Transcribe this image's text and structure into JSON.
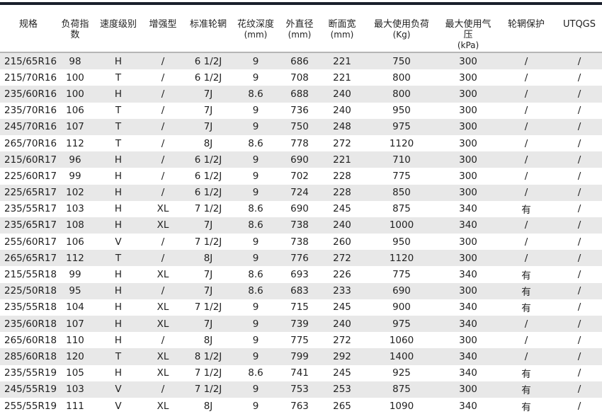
{
  "table": {
    "headers": [
      {
        "label": "规格",
        "unit": ""
      },
      {
        "label": "负荷指数",
        "unit": ""
      },
      {
        "label": "速度级别",
        "unit": ""
      },
      {
        "label": "增强型",
        "unit": ""
      },
      {
        "label": "标准轮辋",
        "unit": ""
      },
      {
        "label": "花纹深度",
        "unit": "(mm)"
      },
      {
        "label": "外直径",
        "unit": "(mm)"
      },
      {
        "label": "断面宽",
        "unit": "(mm)"
      },
      {
        "label": "最大使用负荷",
        "unit": "(Kg)"
      },
      {
        "label": "最大使用气压",
        "unit": "(kPa)"
      },
      {
        "label": "轮辋保护",
        "unit": ""
      },
      {
        "label": "UTQGS",
        "unit": ""
      }
    ],
    "rows": [
      [
        "215/65R16",
        "98",
        "H",
        "/",
        "6 1/2J",
        "9",
        "686",
        "221",
        "750",
        "300",
        "/",
        "/"
      ],
      [
        "215/70R16",
        "100",
        "T",
        "/",
        "6 1/2J",
        "9",
        "708",
        "221",
        "800",
        "300",
        "/",
        "/"
      ],
      [
        "235/60R16",
        "100",
        "H",
        "/",
        "7J",
        "8.6",
        "688",
        "240",
        "800",
        "300",
        "/",
        "/"
      ],
      [
        "235/70R16",
        "106",
        "T",
        "/",
        "7J",
        "9",
        "736",
        "240",
        "950",
        "300",
        "/",
        "/"
      ],
      [
        "245/70R16",
        "107",
        "T",
        "/",
        "7J",
        "9",
        "750",
        "248",
        "975",
        "300",
        "/",
        "/"
      ],
      [
        "265/70R16",
        "112",
        "T",
        "/",
        "8J",
        "8.6",
        "778",
        "272",
        "1120",
        "300",
        "/",
        "/"
      ],
      [
        "215/60R17",
        "96",
        "H",
        "/",
        "6 1/2J",
        "9",
        "690",
        "221",
        "710",
        "300",
        "/",
        "/"
      ],
      [
        "225/60R17",
        "99",
        "H",
        "/",
        "6 1/2J",
        "9",
        "702",
        "228",
        "775",
        "300",
        "/",
        "/"
      ],
      [
        "225/65R17",
        "102",
        "H",
        "/",
        "6 1/2J",
        "9",
        "724",
        "228",
        "850",
        "300",
        "/",
        "/"
      ],
      [
        "235/55R17",
        "103",
        "H",
        "XL",
        "7 1/2J",
        "8.6",
        "690",
        "245",
        "875",
        "340",
        "有",
        "/"
      ],
      [
        "235/65R17",
        "108",
        "H",
        "XL",
        "7J",
        "8.6",
        "738",
        "240",
        "1000",
        "340",
        "/",
        "/"
      ],
      [
        "255/60R17",
        "106",
        "V",
        "/",
        "7 1/2J",
        "9",
        "738",
        "260",
        "950",
        "300",
        "/",
        "/"
      ],
      [
        "265/65R17",
        "112",
        "T",
        "/",
        "8J",
        "9",
        "776",
        "272",
        "1120",
        "300",
        "/",
        "/"
      ],
      [
        "215/55R18",
        "99",
        "H",
        "XL",
        "7J",
        "8.6",
        "693",
        "226",
        "775",
        "340",
        "有",
        "/"
      ],
      [
        "225/50R18",
        "95",
        "H",
        "/",
        "7J",
        "8.6",
        "683",
        "233",
        "690",
        "300",
        "有",
        "/"
      ],
      [
        "235/55R18",
        "104",
        "H",
        "XL",
        "7 1/2J",
        "9",
        "715",
        "245",
        "900",
        "340",
        "有",
        "/"
      ],
      [
        "235/60R18",
        "107",
        "H",
        "XL",
        "7J",
        "9",
        "739",
        "240",
        "975",
        "340",
        "/",
        "/"
      ],
      [
        "265/60R18",
        "110",
        "H",
        "/",
        "8J",
        "9",
        "775",
        "272",
        "1060",
        "300",
        "/",
        "/"
      ],
      [
        "285/60R18",
        "120",
        "T",
        "XL",
        "8 1/2J",
        "9",
        "799",
        "292",
        "1400",
        "340",
        "/",
        "/"
      ],
      [
        "235/55R19",
        "105",
        "H",
        "XL",
        "7 1/2J",
        "8.6",
        "741",
        "245",
        "925",
        "340",
        "有",
        "/"
      ],
      [
        "245/55R19",
        "103",
        "V",
        "/",
        "7 1/2J",
        "9",
        "753",
        "253",
        "875",
        "300",
        "有",
        "/"
      ],
      [
        "255/55R19",
        "111",
        "V",
        "XL",
        "8J",
        "9",
        "763",
        "265",
        "1090",
        "340",
        "有",
        "/"
      ]
    ],
    "stripe_color": "#e8e8e8",
    "rule_color": "#1a1f2b"
  }
}
